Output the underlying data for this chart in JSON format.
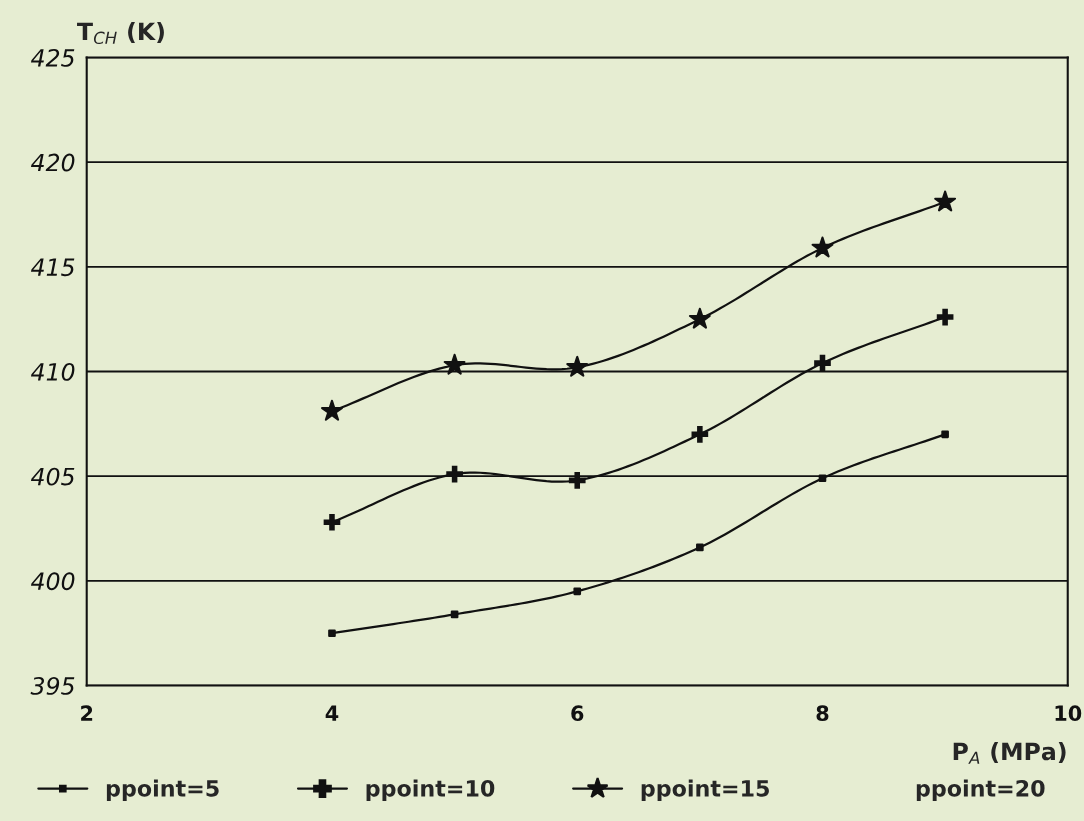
{
  "chart_data": {
    "type": "line",
    "xlabel": "P$_{A}$ (MPa)",
    "ylabel": "T$_{CH}$ (K)",
    "x": [
      4,
      5,
      6,
      7,
      8,
      9
    ],
    "xlim": [
      2,
      10
    ],
    "xticks": [
      2,
      4,
      6,
      8,
      10
    ],
    "ylim": [
      395,
      425
    ],
    "yticks": [
      395,
      400,
      405,
      410,
      415,
      420,
      425
    ],
    "grid": "y",
    "legend": "bottom",
    "series": [
      {
        "name": "ppoint=5",
        "color": "#111111",
        "marker": "square",
        "values": [
          397.5,
          398.4,
          399.5,
          401.6,
          404.9,
          407.0
        ]
      },
      {
        "name": "ppoint=10",
        "color": "#111111",
        "marker": "cross",
        "values": [
          402.8,
          405.1,
          404.8,
          407.0,
          410.4,
          412.6
        ]
      },
      {
        "name": "ppoint=15",
        "color": "#111111",
        "marker": "star",
        "values": [
          408.1,
          410.3,
          410.2,
          412.5,
          415.9,
          418.1
        ]
      },
      {
        "name": "ppoint=20",
        "color": "#111111",
        "marker": "none",
        "values": [
          null,
          null,
          null,
          null,
          null,
          null
        ]
      }
    ]
  }
}
